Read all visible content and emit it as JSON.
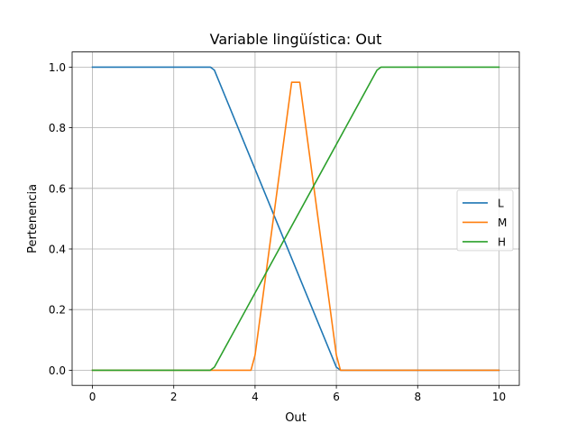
{
  "chart_data": {
    "type": "line",
    "title": "Variable lingüística: Out",
    "xlabel": "Out",
    "ylabel": "Pertenencia",
    "xlim": [
      -0.5,
      10.5
    ],
    "ylim": [
      -0.05,
      1.05
    ],
    "xticks": [
      0,
      2,
      4,
      6,
      8,
      10
    ],
    "yticks": [
      0.0,
      0.2,
      0.4,
      0.6,
      0.8,
      1.0
    ],
    "xtick_labels": [
      "0",
      "2",
      "4",
      "6",
      "8",
      "10"
    ],
    "ytick_labels": [
      "0.0",
      "0.2",
      "0.4",
      "0.6",
      "0.8",
      "1.0"
    ],
    "grid": true,
    "legend_position": "center-right",
    "series": [
      {
        "name": "L",
        "color": "#1f77b4",
        "x": [
          0,
          2.9,
          3.0,
          6.0,
          6.1,
          10
        ],
        "y": [
          1.0,
          1.0,
          0.99,
          0.01,
          0.0,
          0.0
        ]
      },
      {
        "name": "M",
        "color": "#ff7f0e",
        "x": [
          0,
          3.9,
          4.0,
          4.9,
          5.1,
          6.0,
          6.1,
          10
        ],
        "y": [
          0.0,
          0.0,
          0.05,
          0.95,
          0.95,
          0.05,
          0.0,
          0.0
        ]
      },
      {
        "name": "H",
        "color": "#2ca02c",
        "x": [
          0,
          2.9,
          3.0,
          7.0,
          7.1,
          10
        ],
        "y": [
          0.0,
          0.0,
          0.01,
          0.99,
          1.0,
          1.0
        ]
      }
    ]
  }
}
